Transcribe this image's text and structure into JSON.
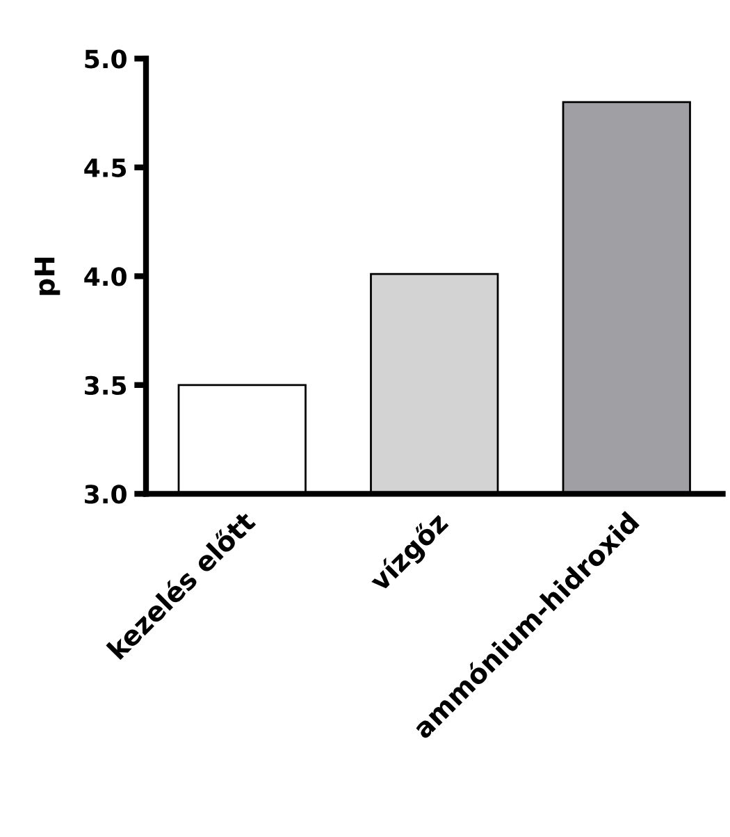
{
  "chart_data": {
    "type": "bar",
    "ylabel": "pH",
    "categories": [
      "kezelés előtt",
      "vízgőz",
      "ammónium-hidroxid"
    ],
    "values": [
      3.5,
      4.01,
      4.8
    ],
    "colors": [
      "#ffffff",
      "#d3d3d3",
      "#a09fa4"
    ],
    "ylim": [
      3.0,
      5.0
    ],
    "yticks": [
      {
        "value": 3.0,
        "label": "3.0"
      },
      {
        "value": 3.5,
        "label": "3.5"
      },
      {
        "value": 4.0,
        "label": "4.0"
      },
      {
        "value": 4.5,
        "label": "4.5"
      },
      {
        "value": 5.0,
        "label": "5.0"
      }
    ],
    "grid": false
  }
}
